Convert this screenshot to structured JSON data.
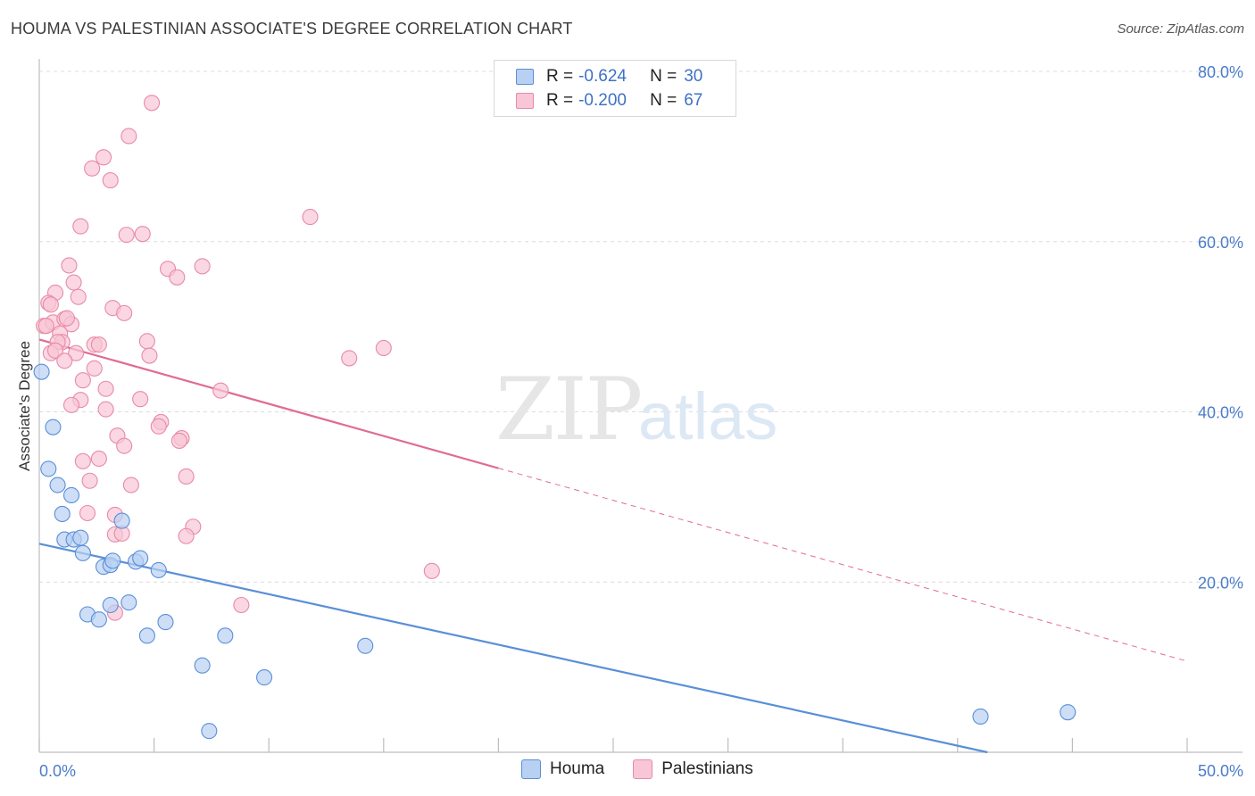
{
  "title": "HOUMA VS PALESTINIAN ASSOCIATE'S DEGREE CORRELATION CHART",
  "source": "Source: ZipAtlas.com",
  "watermark": {
    "zip": "ZIP",
    "atlas": "atlas"
  },
  "legend_top": [
    {
      "name": "Houma",
      "r_label": "R =",
      "r_value": "-0.624",
      "n_label": "N =",
      "n_value": "30",
      "fill": "#b8d0f2",
      "stroke": "#5a8fd8"
    },
    {
      "name": "Palestinians",
      "r_label": "R =",
      "r_value": "-0.200",
      "n_label": "N =",
      "n_value": "67",
      "fill": "#f8c6d6",
      "stroke": "#e88aa8"
    }
  ],
  "legend_bottom": [
    {
      "label": "Houma",
      "fill": "#b8d0f2",
      "stroke": "#5a8fd8"
    },
    {
      "label": "Palestinians",
      "fill": "#f8c6d6",
      "stroke": "#e88aa8"
    }
  ],
  "chart_data": {
    "type": "scatter",
    "title": "HOUMA VS PALESTINIAN ASSOCIATE'S DEGREE CORRELATION CHART",
    "xlabel": "",
    "ylabel": "Associate's Degree",
    "xlim": [
      0,
      50
    ],
    "ylim": [
      0,
      80
    ],
    "x_tick_labels": [
      "0.0%",
      "50.0%"
    ],
    "y_tick_labels": [
      "20.0%",
      "40.0%",
      "60.0%",
      "80.0%"
    ],
    "y_ticks": [
      20,
      40,
      60,
      80
    ],
    "grid": true,
    "legend_position": "top-center",
    "series": [
      {
        "name": "Houma",
        "color": "#5a8fd8",
        "fill": "#b8d0f2",
        "trend": {
          "x0": 0,
          "y0": 24.5,
          "x1": 41.3,
          "y1": 0,
          "solid_to": 41.3
        },
        "points": [
          [
            0.1,
            44.7
          ],
          [
            0.6,
            38.2
          ],
          [
            0.4,
            33.3
          ],
          [
            0.8,
            31.4
          ],
          [
            1.0,
            28.0
          ],
          [
            1.4,
            30.2
          ],
          [
            1.1,
            25.0
          ],
          [
            1.5,
            25.0
          ],
          [
            1.8,
            25.2
          ],
          [
            1.9,
            23.4
          ],
          [
            2.8,
            21.8
          ],
          [
            3.1,
            22.0
          ],
          [
            3.2,
            22.5
          ],
          [
            3.6,
            27.2
          ],
          [
            4.2,
            22.4
          ],
          [
            4.4,
            22.8
          ],
          [
            5.2,
            21.4
          ],
          [
            3.1,
            17.3
          ],
          [
            3.9,
            17.6
          ],
          [
            2.1,
            16.2
          ],
          [
            2.6,
            15.6
          ],
          [
            5.5,
            15.3
          ],
          [
            4.7,
            13.7
          ],
          [
            8.1,
            13.7
          ],
          [
            7.1,
            10.2
          ],
          [
            9.8,
            8.8
          ],
          [
            14.2,
            12.5
          ],
          [
            7.4,
            2.5
          ],
          [
            41.0,
            4.2
          ],
          [
            44.8,
            4.7
          ]
        ]
      },
      {
        "name": "Palestinians",
        "color": "#e06c95",
        "fill": "#f8c6d6",
        "trend": {
          "x0": 0,
          "y0": 48.5,
          "x1": 50,
          "y1": 10.7,
          "solid_to": 20.0
        },
        "points": [
          [
            4.9,
            76.3
          ],
          [
            3.9,
            72.4
          ],
          [
            2.8,
            69.9
          ],
          [
            2.3,
            68.6
          ],
          [
            3.1,
            67.2
          ],
          [
            11.8,
            62.9
          ],
          [
            1.8,
            61.8
          ],
          [
            3.8,
            60.8
          ],
          [
            4.5,
            60.9
          ],
          [
            1.3,
            57.2
          ],
          [
            5.6,
            56.8
          ],
          [
            7.1,
            57.1
          ],
          [
            6.0,
            55.8
          ],
          [
            1.5,
            55.2
          ],
          [
            0.7,
            54.0
          ],
          [
            1.7,
            53.5
          ],
          [
            0.4,
            52.8
          ],
          [
            3.2,
            52.2
          ],
          [
            3.7,
            51.6
          ],
          [
            0.2,
            50.1
          ],
          [
            0.6,
            50.5
          ],
          [
            1.1,
            50.9
          ],
          [
            1.4,
            50.3
          ],
          [
            0.9,
            49.2
          ],
          [
            1.0,
            48.2
          ],
          [
            0.8,
            48.2
          ],
          [
            2.4,
            47.9
          ],
          [
            2.6,
            47.9
          ],
          [
            4.7,
            48.3
          ],
          [
            0.5,
            46.9
          ],
          [
            0.7,
            47.2
          ],
          [
            1.6,
            46.9
          ],
          [
            4.8,
            46.6
          ],
          [
            15.0,
            47.5
          ],
          [
            13.5,
            46.3
          ],
          [
            1.1,
            46.0
          ],
          [
            2.4,
            45.1
          ],
          [
            1.9,
            43.7
          ],
          [
            2.9,
            42.7
          ],
          [
            7.9,
            42.5
          ],
          [
            1.8,
            41.4
          ],
          [
            1.4,
            40.8
          ],
          [
            4.4,
            41.5
          ],
          [
            2.9,
            40.3
          ],
          [
            5.3,
            38.8
          ],
          [
            5.2,
            38.3
          ],
          [
            3.4,
            37.2
          ],
          [
            6.2,
            36.9
          ],
          [
            6.1,
            36.6
          ],
          [
            3.7,
            36.0
          ],
          [
            1.9,
            34.2
          ],
          [
            2.6,
            34.5
          ],
          [
            6.4,
            32.4
          ],
          [
            2.2,
            31.9
          ],
          [
            4.0,
            31.4
          ],
          [
            3.3,
            27.9
          ],
          [
            2.1,
            28.1
          ],
          [
            6.7,
            26.5
          ],
          [
            3.3,
            25.6
          ],
          [
            3.6,
            25.7
          ],
          [
            6.4,
            25.4
          ],
          [
            17.1,
            21.3
          ],
          [
            8.8,
            17.3
          ],
          [
            3.3,
            16.4
          ],
          [
            0.3,
            50.1
          ],
          [
            1.2,
            51.0
          ],
          [
            0.5,
            52.6
          ]
        ]
      }
    ]
  },
  "y_axis_label": "Associate's Degree"
}
